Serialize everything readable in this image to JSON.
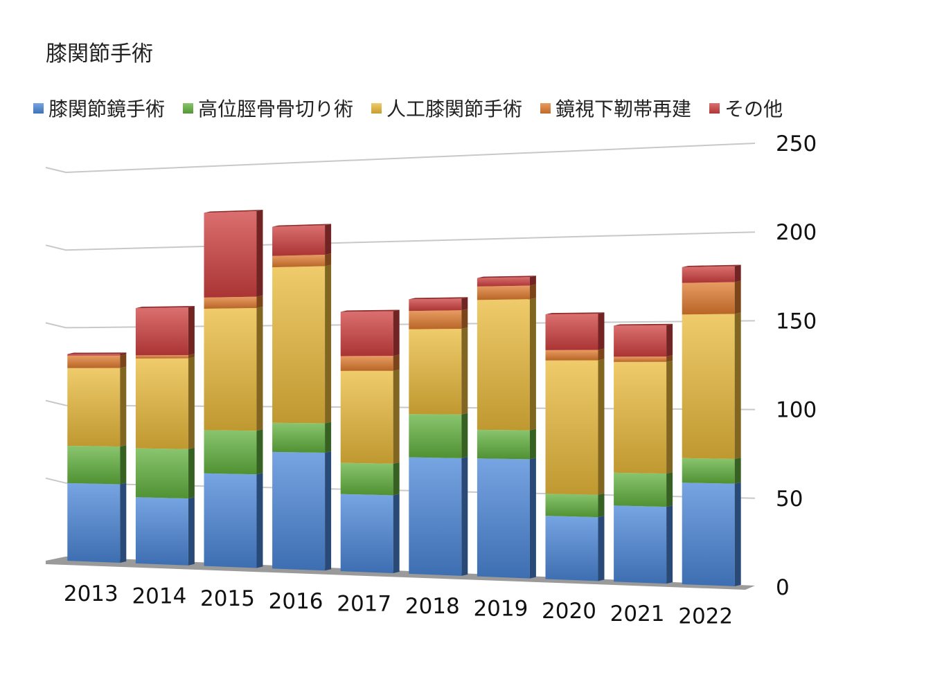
{
  "chart_data": {
    "type": "bar",
    "stacked": true,
    "three_d": true,
    "title": "膝関節手術",
    "categories": [
      "2013",
      "2014",
      "2015",
      "2016",
      "2017",
      "2018",
      "2019",
      "2020",
      "2021",
      "2022"
    ],
    "series": [
      {
        "name": "膝関節鏡手術",
        "color": "#4A86D8",
        "values": [
          50,
          42,
          58,
          72,
          47,
          70,
          70,
          37,
          44,
          58
        ]
      },
      {
        "name": "高位脛骨骨切り術",
        "color": "#62B13E",
        "values": [
          24,
          31,
          27,
          18,
          19,
          26,
          17,
          13,
          19,
          14
        ]
      },
      {
        "name": "人工膝関節手術",
        "color": "#E9B93A",
        "values": [
          50,
          57,
          76,
          96,
          56,
          51,
          77,
          78,
          64,
          82
        ]
      },
      {
        "name": "鏡視下靭帯再建",
        "color": "#E07B2E",
        "values": [
          8,
          2,
          7,
          7,
          9,
          11,
          8,
          6,
          3,
          18
        ]
      },
      {
        "name": "その他",
        "color": "#CF3F3F",
        "values": [
          1,
          30,
          53,
          18,
          27,
          7,
          5,
          21,
          18,
          9
        ]
      }
    ],
    "ylim": [
      0,
      250
    ],
    "yticks": [
      0,
      50,
      100,
      150,
      200,
      250
    ],
    "axis_position": "right",
    "grid": true,
    "legend_position": "top"
  }
}
